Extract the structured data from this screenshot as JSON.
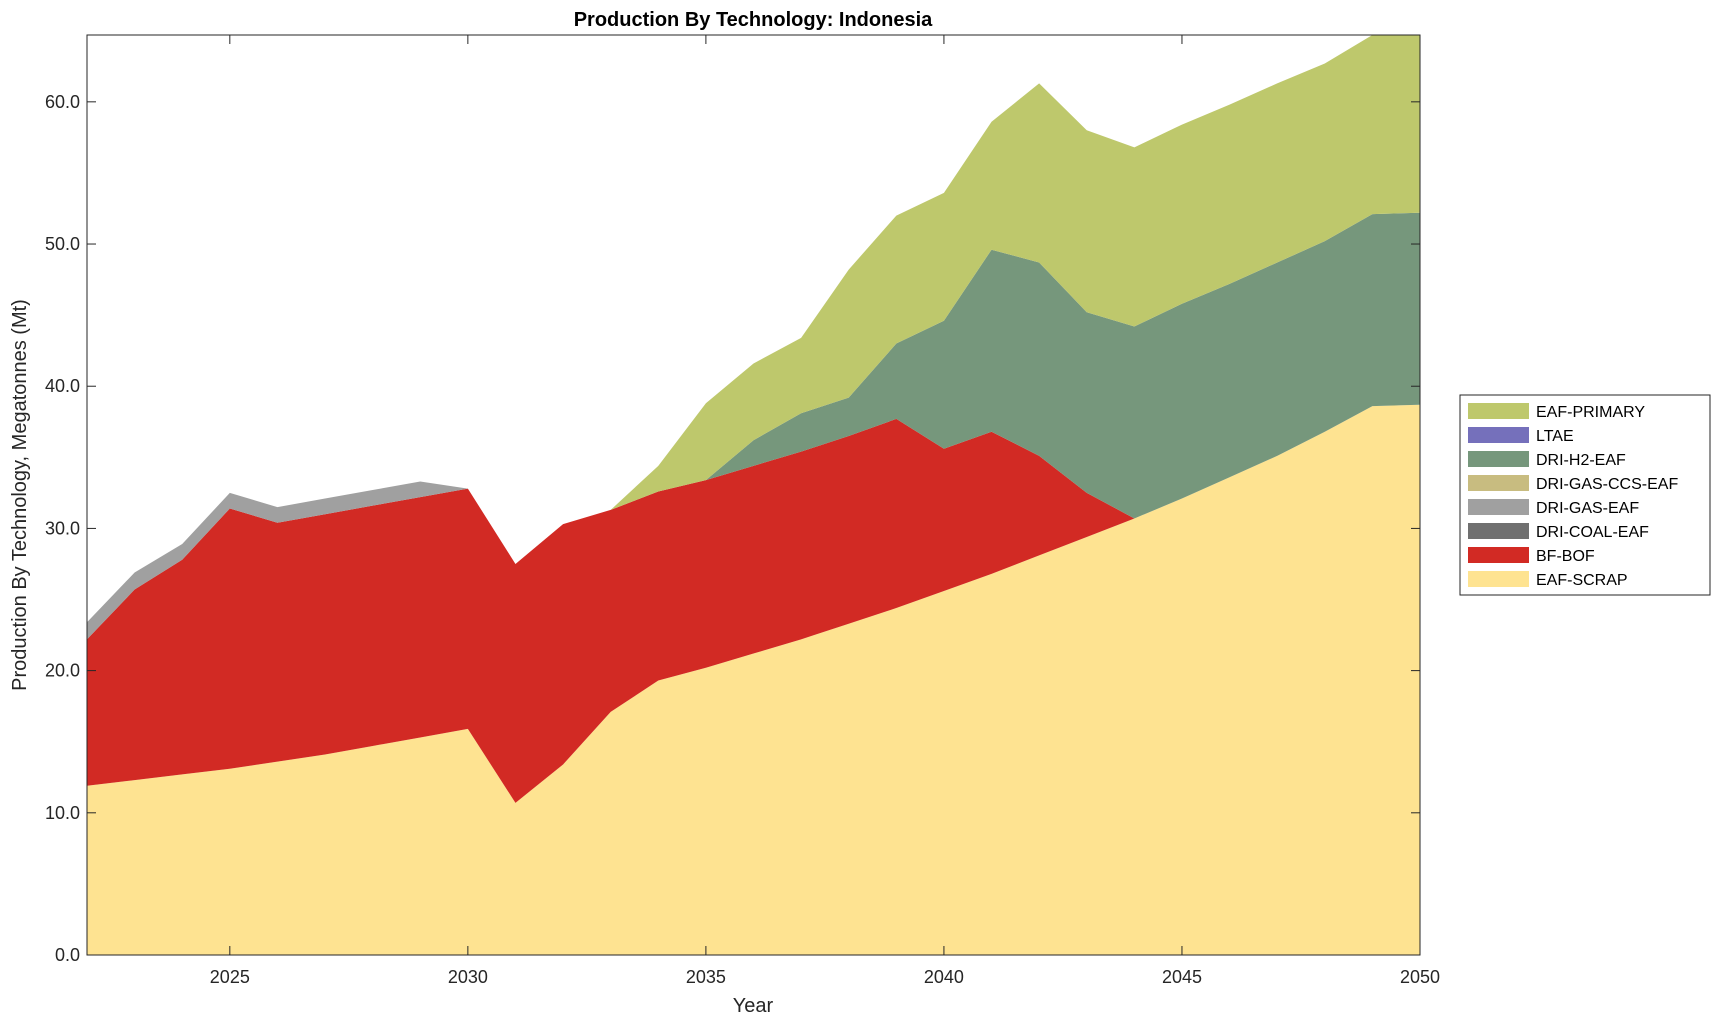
{
  "chart_data": {
    "type": "area",
    "stacked": true,
    "title": "Production By Technology: Indonesia",
    "xlabel": "Year",
    "ylabel": "Production By Technology, Megatonnes (Mt)",
    "xlim": [
      2022,
      2050
    ],
    "ylim": [
      0,
      64.7
    ],
    "xticks": [
      2025,
      2030,
      2035,
      2040,
      2045,
      2050
    ],
    "yticks": [
      0,
      10,
      20,
      30,
      40,
      50,
      60
    ],
    "ytick_labels": [
      "0.0",
      "10.0",
      "20.0",
      "30.0",
      "40.0",
      "50.0",
      "60.0"
    ],
    "grid": false,
    "legend_position": "right",
    "x": [
      2022,
      2023,
      2024,
      2025,
      2026,
      2027,
      2028,
      2029,
      2030,
      2031,
      2032,
      2033,
      2034,
      2035,
      2036,
      2037,
      2038,
      2039,
      2040,
      2041,
      2042,
      2043,
      2044,
      2045,
      2046,
      2047,
      2048,
      2049,
      2050
    ],
    "series": [
      {
        "name": "EAF-SCRAP",
        "color": "#fee391",
        "values": [
          11.9,
          12.3,
          12.7,
          13.1,
          13.6,
          14.1,
          14.7,
          15.3,
          15.9,
          10.7,
          13.4,
          17.1,
          19.3,
          20.2,
          21.2,
          22.2,
          23.3,
          24.4,
          25.6,
          26.8,
          28.1,
          29.4,
          30.7,
          32.1,
          33.6,
          35.1,
          36.8,
          38.6,
          38.7
        ]
      },
      {
        "name": "BF-BOF",
        "color": "#d22a24",
        "values": [
          10.3,
          13.4,
          15.1,
          18.3,
          16.8,
          16.9,
          16.9,
          16.9,
          16.9,
          16.8,
          16.9,
          14.2,
          13.3,
          13.2,
          13.2,
          13.2,
          13.2,
          13.3,
          10.0,
          10.0,
          7.0,
          3.1,
          0,
          0,
          0,
          0,
          0,
          0,
          0
        ]
      },
      {
        "name": "DRI-COAL-EAF",
        "color": "#707070",
        "values": [
          0,
          0,
          0,
          0,
          0,
          0,
          0,
          0,
          0,
          0,
          0,
          0,
          0,
          0,
          0,
          0,
          0,
          0,
          0,
          0,
          0,
          0,
          0,
          0,
          0,
          0,
          0,
          0,
          0
        ]
      },
      {
        "name": "DRI-GAS-EAF",
        "color": "#a0a0a0",
        "values": [
          1.2,
          1.2,
          1.1,
          1.1,
          1.1,
          1.1,
          1.1,
          1.1,
          0,
          0,
          0,
          0,
          0,
          0,
          0,
          0,
          0,
          0,
          0,
          0,
          0,
          0,
          0,
          0,
          0,
          0,
          0,
          0,
          0
        ]
      },
      {
        "name": "DRI-GAS-CCS-EAF",
        "color": "#c8bc80",
        "values": [
          0,
          0,
          0,
          0,
          0,
          0,
          0,
          0,
          0,
          0,
          0,
          0,
          0,
          0,
          0,
          0,
          0,
          0,
          0,
          0,
          0,
          0,
          0,
          0,
          0,
          0,
          0,
          0,
          0
        ]
      },
      {
        "name": "DRI-H2-EAF",
        "color": "#76977c",
        "values": [
          0,
          0,
          0,
          0,
          0,
          0,
          0,
          0,
          0,
          0,
          0,
          0,
          0,
          0,
          1.8,
          2.7,
          2.7,
          5.3,
          9.0,
          12.8,
          13.6,
          12.7,
          13.5,
          13.7,
          13.6,
          13.6,
          13.4,
          13.5,
          13.5
        ]
      },
      {
        "name": "LTAE",
        "color": "#7570bb",
        "values": [
          0,
          0,
          0,
          0,
          0,
          0,
          0,
          0,
          0,
          0,
          0,
          0,
          0,
          0,
          0,
          0,
          0,
          0,
          0,
          0,
          0,
          0,
          0,
          0,
          0,
          0,
          0,
          0,
          0
        ]
      },
      {
        "name": "EAF-PRIMARY",
        "color": "#bec86c",
        "values": [
          0,
          0,
          0,
          0,
          0,
          0,
          0,
          0,
          0,
          0,
          0,
          0,
          1.8,
          5.4,
          5.4,
          5.3,
          9.0,
          9.0,
          9.0,
          9.0,
          12.6,
          12.8,
          12.6,
          12.6,
          12.6,
          12.6,
          12.5,
          12.6,
          12.5
        ]
      }
    ],
    "legend_order": [
      "EAF-PRIMARY",
      "LTAE",
      "DRI-H2-EAF",
      "DRI-GAS-CCS-EAF",
      "DRI-GAS-EAF",
      "DRI-COAL-EAF",
      "BF-BOF",
      "EAF-SCRAP"
    ]
  }
}
